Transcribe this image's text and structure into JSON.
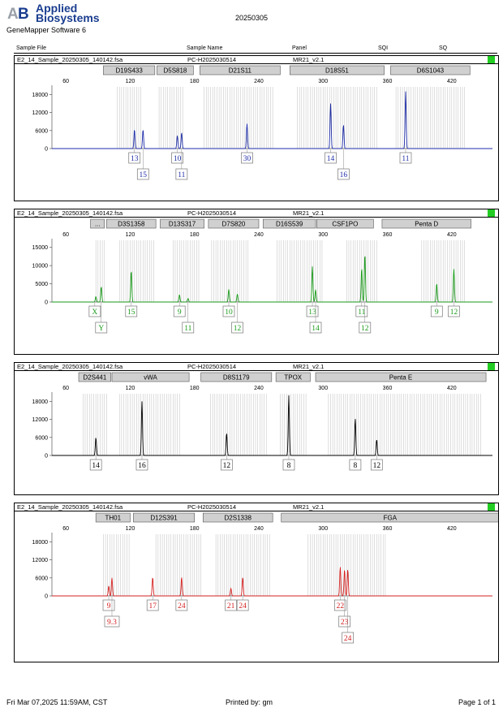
{
  "header": {
    "brand_line1": "Applied",
    "brand_line2": "Biosystems",
    "software": "GeneMapper Software 6",
    "title": "20250305",
    "columns": [
      "Sample File",
      "Sample Name",
      "Panel",
      "SQI",
      "SQ"
    ]
  },
  "footer": {
    "datetime": "Fri Mar 07,2025 11:59AM, CST",
    "printed_by": "Printed by: gm",
    "page": "Page 1 of 1"
  },
  "colors": {
    "blue": "#1f2ea8",
    "green": "#1a9a1a",
    "black": "#000000",
    "red": "#d42020",
    "quality": "#22cc22"
  },
  "chart_data": [
    {
      "type": "line",
      "sample_file": "E2_14_Sample_20250305_140142.fsa",
      "sample_name": "PC-H2025030514",
      "panel": "MR21_v2.1",
      "color": "blue",
      "x_ticks": [
        60,
        120,
        180,
        240,
        300,
        360,
        420
      ],
      "y_ticks": [
        0,
        6000,
        12000,
        18000
      ],
      "xlim": [
        47,
        458
      ],
      "ylim": [
        0,
        20000
      ],
      "markers": [
        {
          "name": "D19S433",
          "range": [
            95,
            143
          ]
        },
        {
          "name": "D5S818",
          "range": [
            145,
            179
          ]
        },
        {
          "name": "D21S11",
          "range": [
            185,
            260
          ]
        },
        {
          "name": "D18S51",
          "range": [
            269,
            357
          ]
        },
        {
          "name": "D6S1043",
          "range": [
            363,
            437
          ]
        }
      ],
      "bins": [
        [
          108,
          130
        ],
        [
          147,
          170
        ],
        [
          189,
          254
        ],
        [
          276,
          350
        ],
        [
          368,
          432
        ]
      ],
      "peaks": [
        {
          "x": 124,
          "h": 6300
        },
        {
          "x": 132,
          "h": 6300
        },
        {
          "x": 164,
          "h": 4300
        },
        {
          "x": 168,
          "h": 5300
        },
        {
          "x": 229,
          "h": 8300
        },
        {
          "x": 307,
          "h": 15000
        },
        {
          "x": 319,
          "h": 7900
        },
        {
          "x": 377,
          "h": 19000
        }
      ],
      "alleles": [
        {
          "label": "13",
          "x": 124,
          "row": 0
        },
        {
          "label": "15",
          "x": 132,
          "row": 1
        },
        {
          "label": "10",
          "x": 164,
          "row": 0
        },
        {
          "label": "11",
          "x": 168,
          "row": 1
        },
        {
          "label": "30",
          "x": 229,
          "row": 0
        },
        {
          "label": "14",
          "x": 307,
          "row": 0
        },
        {
          "label": "16",
          "x": 319,
          "row": 1
        },
        {
          "label": "11",
          "x": 377,
          "row": 0
        }
      ]
    },
    {
      "type": "line",
      "sample_file": "E2_14_Sample_20250305_140142.fsa",
      "sample_name": "PC-H2025030514",
      "panel": "MR21_v2.1",
      "color": "green",
      "x_ticks": [
        60,
        120,
        180,
        240,
        300,
        360,
        420
      ],
      "y_ticks": [
        0,
        5000,
        10000,
        15000
      ],
      "xlim": [
        47,
        458
      ],
      "ylim": [
        0,
        16500
      ],
      "markers": [
        {
          "name": "...",
          "range": [
            83,
            96
          ]
        },
        {
          "name": "D3S1358",
          "range": [
            98,
            144
          ]
        },
        {
          "name": "D13S317",
          "range": [
            148,
            189
          ]
        },
        {
          "name": "D7S820",
          "range": [
            193,
            240
          ]
        },
        {
          "name": "D16S539",
          "range": [
            244,
            293
          ]
        },
        {
          "name": "CSF1PO",
          "range": [
            294,
            347
          ]
        },
        {
          "name": "Penta D",
          "range": [
            355,
            438
          ]
        }
      ],
      "bins": [
        [
          88,
          96
        ],
        [
          110,
          142
        ],
        [
          160,
          184
        ],
        [
          196,
          230
        ],
        [
          257,
          300
        ],
        [
          322,
          350
        ],
        [
          392,
          432
        ]
      ],
      "peaks": [
        {
          "x": 88,
          "h": 1500
        },
        {
          "x": 93,
          "h": 4200
        },
        {
          "x": 121,
          "h": 8600
        },
        {
          "x": 166,
          "h": 2000
        },
        {
          "x": 174,
          "h": 1000
        },
        {
          "x": 212,
          "h": 3500
        },
        {
          "x": 220,
          "h": 2200
        },
        {
          "x": 290,
          "h": 9800
        },
        {
          "x": 293,
          "h": 3400
        },
        {
          "x": 336,
          "h": 9300
        },
        {
          "x": 339,
          "h": 13200
        },
        {
          "x": 406,
          "h": 5100
        },
        {
          "x": 422,
          "h": 9100
        }
      ],
      "alleles": [
        {
          "label": "X",
          "x": 87,
          "row": 0
        },
        {
          "label": "Y",
          "x": 93,
          "row": 1
        },
        {
          "label": "15",
          "x": 121,
          "row": 0
        },
        {
          "label": "9",
          "x": 166,
          "row": 0
        },
        {
          "label": "11",
          "x": 174,
          "row": 1
        },
        {
          "label": "10",
          "x": 212,
          "row": 0
        },
        {
          "label": "12",
          "x": 220,
          "row": 1
        },
        {
          "label": "13",
          "x": 290,
          "row": 0
        },
        {
          "label": "14",
          "x": 293,
          "row": 1
        },
        {
          "label": "11",
          "x": 336,
          "row": 0
        },
        {
          "label": "12",
          "x": 339,
          "row": 1
        },
        {
          "label": "9",
          "x": 406,
          "row": 0
        },
        {
          "label": "12",
          "x": 422,
          "row": 0
        }
      ]
    },
    {
      "type": "line",
      "sample_file": "E2_14_Sample_20250305_140142.fsa",
      "sample_name": "PC-H2025030514",
      "panel": "MR21_v2.1",
      "color": "black",
      "x_ticks": [
        60,
        120,
        180,
        240,
        300,
        360,
        420
      ],
      "y_ticks": [
        0,
        6000,
        12000,
        18000
      ],
      "xlim": [
        47,
        458
      ],
      "ylim": [
        0,
        20000
      ],
      "markers": [
        {
          "name": "D2S441",
          "range": [
            72,
            102
          ]
        },
        {
          "name": "vWA",
          "range": [
            103,
            175
          ]
        },
        {
          "name": "D8S1179",
          "range": [
            186,
            252
          ]
        },
        {
          "name": "TPOX",
          "range": [
            256,
            288
          ]
        },
        {
          "name": "Penta E",
          "range": [
            293,
            452
          ]
        }
      ],
      "bins": [
        [
          76,
          98
        ],
        [
          110,
          166
        ],
        [
          195,
          248
        ],
        [
          260,
          285
        ],
        [
          305,
          448
        ]
      ],
      "peaks": [
        {
          "x": 88,
          "h": 6000
        },
        {
          "x": 131,
          "h": 18000
        },
        {
          "x": 210,
          "h": 7400
        },
        {
          "x": 268,
          "h": 20000
        },
        {
          "x": 330,
          "h": 12300
        },
        {
          "x": 350,
          "h": 5300
        }
      ],
      "alleles": [
        {
          "label": "14",
          "x": 88,
          "row": 0
        },
        {
          "label": "16",
          "x": 131,
          "row": 0
        },
        {
          "label": "12",
          "x": 210,
          "row": 0
        },
        {
          "label": "8",
          "x": 268,
          "row": 0
        },
        {
          "label": "8",
          "x": 330,
          "row": 0
        },
        {
          "label": "12",
          "x": 350,
          "row": 0
        }
      ]
    },
    {
      "type": "line",
      "sample_file": "E2_14_Sample_20250305_140142.fsa",
      "sample_name": "PC-H2025030514",
      "panel": "MR21_v2.1",
      "color": "red",
      "x_ticks": [
        60,
        120,
        180,
        240,
        300,
        360,
        420
      ],
      "y_ticks": [
        0,
        6000,
        12000,
        18000
      ],
      "xlim": [
        47,
        458
      ],
      "ylim": [
        0,
        20000
      ],
      "markers": [
        {
          "name": "TH01",
          "range": [
            88,
            120
          ]
        },
        {
          "name": "D12S391",
          "range": [
            123,
            180
          ]
        },
        {
          "name": "D2S1338",
          "range": [
            188,
            253
          ]
        },
        {
          "name": "FGA",
          "range": [
            261,
            464
          ]
        }
      ],
      "bins": [
        [
          95,
          120
        ],
        [
          144,
          186
        ],
        [
          200,
          250
        ],
        [
          286,
          358
        ]
      ],
      "peaks": [
        {
          "x": 100,
          "h": 3300
        },
        {
          "x": 103,
          "h": 6000
        },
        {
          "x": 141,
          "h": 6200
        },
        {
          "x": 168,
          "h": 6200
        },
        {
          "x": 214,
          "h": 2500
        },
        {
          "x": 225,
          "h": 6200
        },
        {
          "x": 316,
          "h": 9700
        },
        {
          "x": 320,
          "h": 8800
        },
        {
          "x": 323,
          "h": 8800
        }
      ],
      "alleles": [
        {
          "label": "9",
          "x": 100,
          "row": 0
        },
        {
          "label": "9.3",
          "x": 103,
          "row": 1
        },
        {
          "label": "17",
          "x": 141,
          "row": 0
        },
        {
          "label": "24",
          "x": 168,
          "row": 0
        },
        {
          "label": "21",
          "x": 214,
          "row": 0
        },
        {
          "label": "24",
          "x": 225,
          "row": 0
        },
        {
          "label": "22",
          "x": 316,
          "row": 0
        },
        {
          "label": "23",
          "x": 320,
          "row": 1
        },
        {
          "label": "24",
          "x": 323,
          "row": 2
        }
      ]
    }
  ]
}
